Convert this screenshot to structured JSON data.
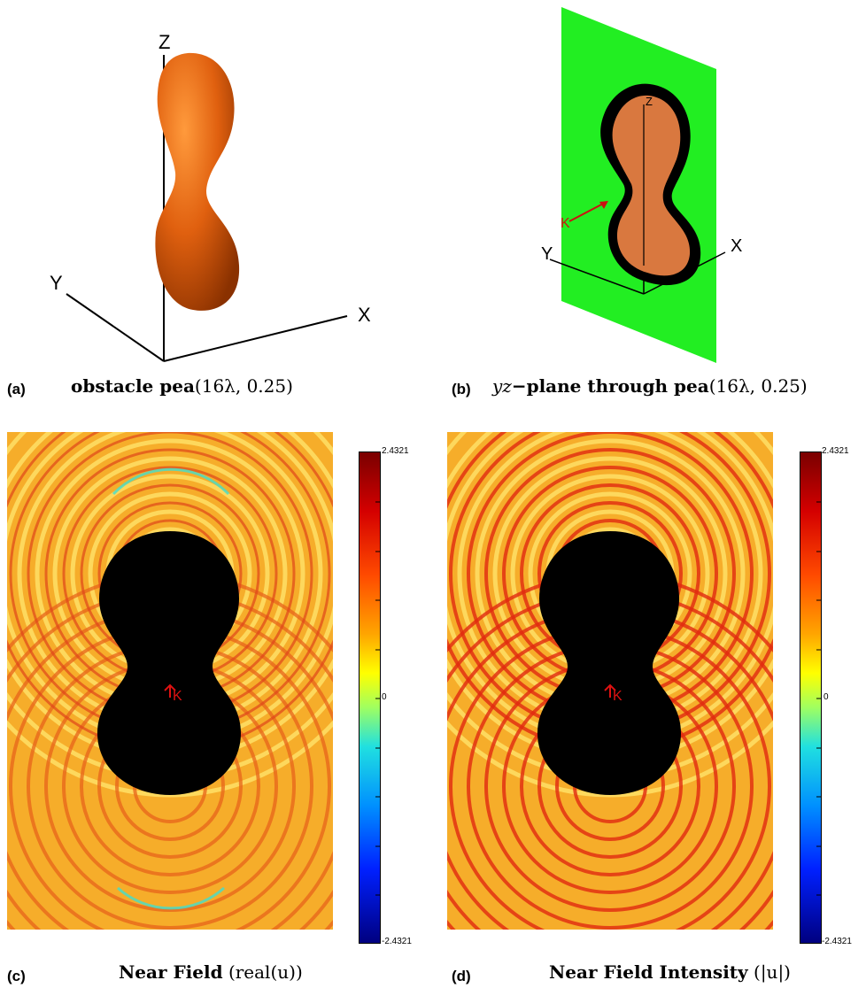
{
  "panel_a": {
    "letter": "(a)",
    "title_bold": "obstacle pea",
    "title_math": "(16λ, 0.25)",
    "axis_z": "Z",
    "axis_y": "Y",
    "axis_x": "X",
    "surface_color": "#e0600f"
  },
  "panel_b": {
    "letter": "(b)",
    "title_italic": "yz",
    "title_bold": "−plane through pea",
    "title_math": "(16λ, 0.25)",
    "axis_z": "Z",
    "axis_y": "Y",
    "axis_x": "X",
    "wave_label": "K",
    "plane_color": "#22ee22",
    "slice_color": "#d9783f"
  },
  "panel_c": {
    "letter": "(c)",
    "title_bold": "Near Field",
    "title_math": "(real(u))",
    "wave_label": "K",
    "colorbar": {
      "max": "2.4321",
      "mid": "0",
      "min": "-2.4321"
    }
  },
  "panel_d": {
    "letter": "(d)",
    "title_bold": "Near Field Intensity",
    "title_math": "(|u|)",
    "wave_label": "K",
    "colorbar": {
      "max": "2.4321",
      "mid": "0",
      "min": "-2.4321"
    }
  }
}
